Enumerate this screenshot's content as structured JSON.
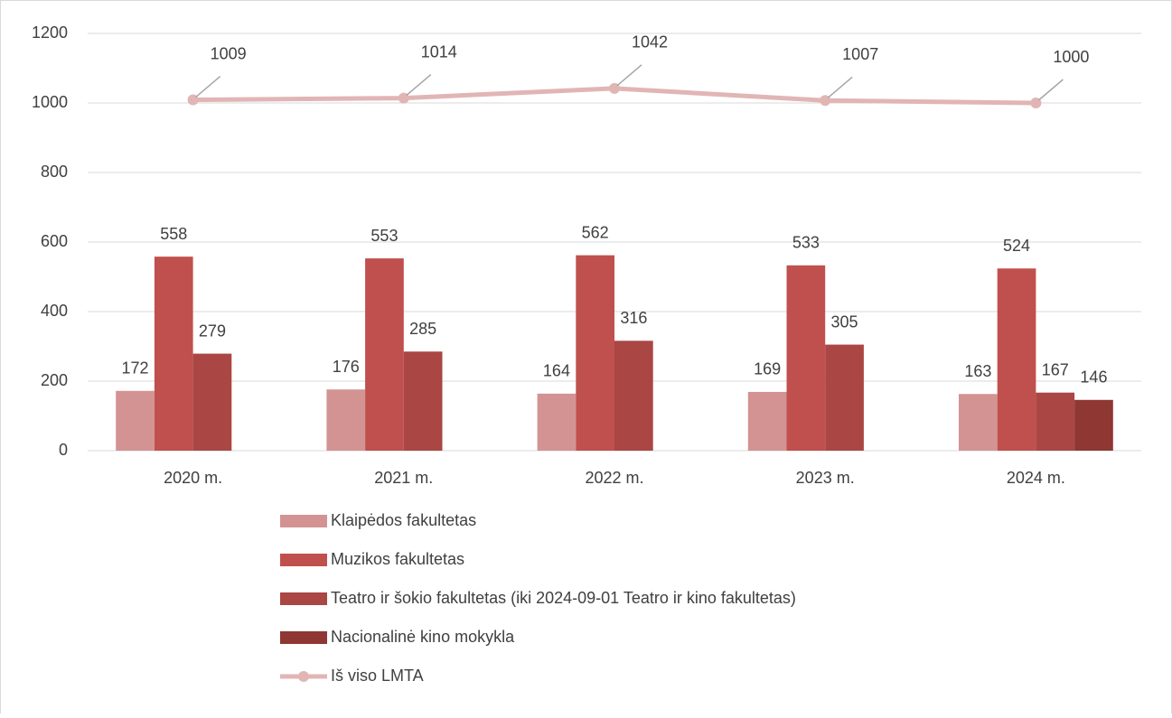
{
  "chart_data": {
    "type": "bar",
    "categories": [
      "2020 m.",
      "2021 m.",
      "2022 m.",
      "2023 m.",
      "2024 m."
    ],
    "series": [
      {
        "name": "Klaipėdos fakultetas",
        "color": "#d39393",
        "values": [
          172,
          176,
          164,
          169,
          163
        ]
      },
      {
        "name": "Muzikos fakultetas",
        "color": "#c0504d",
        "values": [
          558,
          553,
          562,
          533,
          524
        ]
      },
      {
        "name": "Teatro ir šokio fakultetas (iki 2024-09-01 Teatro ir kino fakultetas)",
        "color": "#aa4643",
        "values": [
          279,
          285,
          316,
          305,
          167
        ]
      },
      {
        "name": "Nacionalinė kino mokykla",
        "color": "#8e3733",
        "values": [
          null,
          null,
          null,
          null,
          146
        ]
      },
      {
        "name": "Iš viso LMTA",
        "color": "#e2b5b5",
        "type": "line",
        "values": [
          1009,
          1014,
          1042,
          1007,
          1000
        ]
      }
    ],
    "ylim": [
      0,
      1200
    ],
    "yticks": [
      0,
      200,
      400,
      600,
      800,
      1000,
      1200
    ],
    "grid": true,
    "legend": "bottom"
  }
}
